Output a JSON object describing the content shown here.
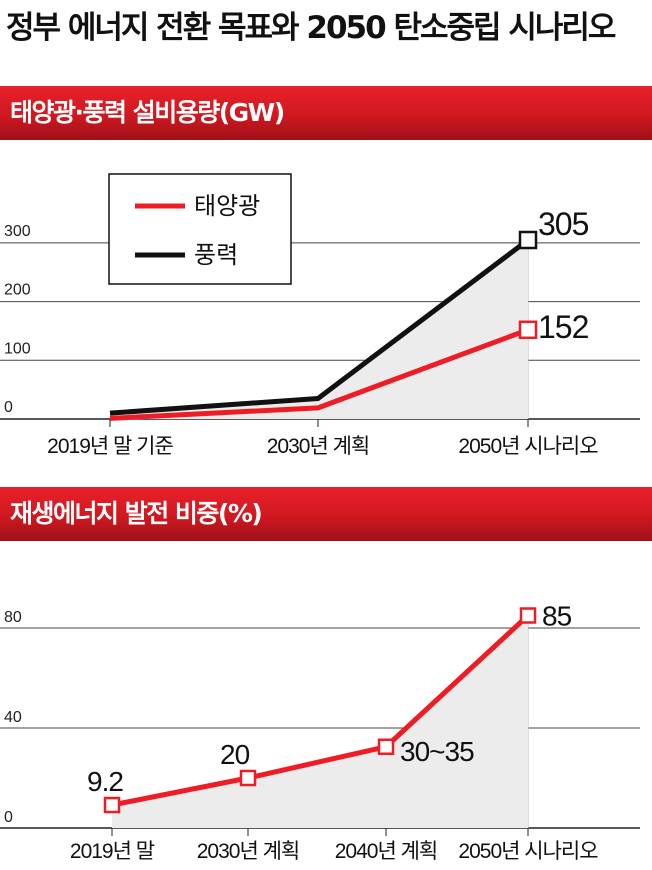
{
  "title": "정부 에너지 전환 목표와 2050 탄소중립 시나리오",
  "colors": {
    "solar": "#ee1c25",
    "wind": "#111111",
    "banner": "#d01820",
    "area": "#ececec"
  },
  "chart_data": [
    {
      "type": "line",
      "title": "태양광·풍력 설비용량(GW)",
      "categories": [
        "2019년 말 기준",
        "2030년 계획",
        "2050년 시나리오"
      ],
      "series": [
        {
          "name": "태양광",
          "values": [
            1,
            19,
            152
          ]
        },
        {
          "name": "풍력",
          "values": [
            10,
            35,
            305
          ]
        }
      ],
      "end_labels": [
        "305",
        "152"
      ],
      "yticks": [
        0,
        100,
        200,
        300
      ],
      "ylim": [
        0,
        305
      ],
      "legend": "top-left",
      "grid": true
    },
    {
      "type": "line",
      "title": "재생에너지 발전 비중(%)",
      "categories": [
        "2019년 말",
        "2030년 계획",
        "2040년 계획",
        "2050년 시나리오"
      ],
      "series": [
        {
          "name": "",
          "values": [
            9.2,
            20,
            32.5,
            85
          ]
        }
      ],
      "point_labels": [
        "9.2",
        "20",
        "30~35",
        "85"
      ],
      "yticks": [
        0,
        40,
        80
      ],
      "ylim": [
        0,
        85
      ],
      "grid": true
    }
  ]
}
